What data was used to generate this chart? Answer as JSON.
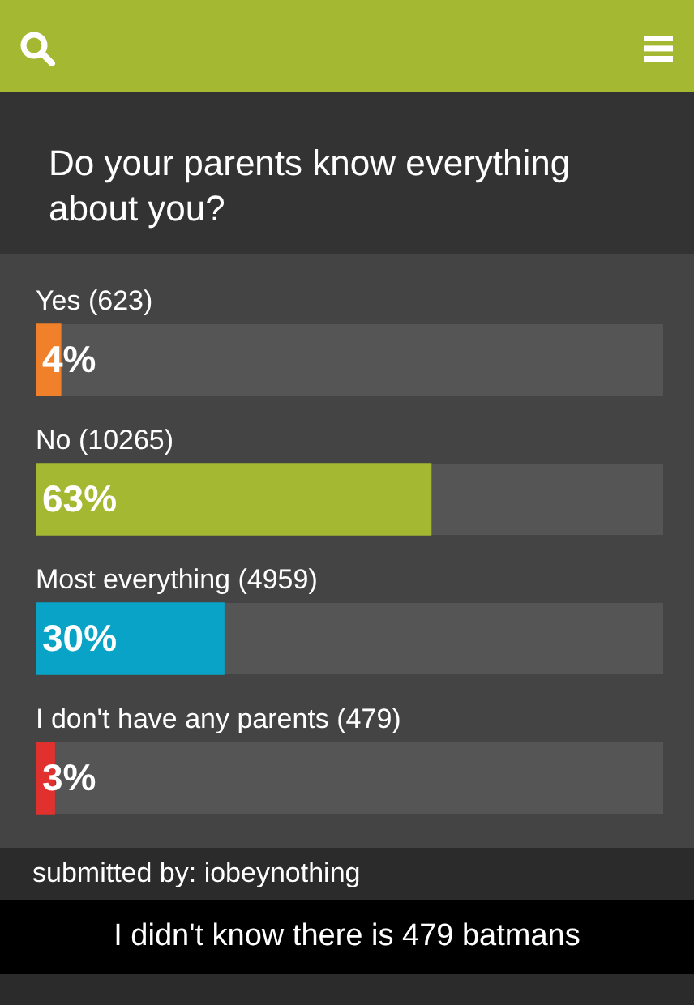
{
  "chart_data": {
    "type": "bar",
    "orientation": "horizontal",
    "title": "Do your parents know everything about you?",
    "categories": [
      "Yes (623)",
      "No (10265)",
      "Most everything (4959)",
      "I don't have any parents (479)"
    ],
    "values": [
      4,
      63,
      30,
      3
    ],
    "colors": [
      "#f0802a",
      "#a5b832",
      "#0aa3c8",
      "#e0312e"
    ],
    "value_labels": [
      "4%",
      "63%",
      "30%",
      "3%"
    ],
    "xlim": [
      0,
      100
    ],
    "legend": false,
    "annotations": [
      "submitted by: iobeynothing",
      "I didn't know there is 479 batmans"
    ]
  }
}
